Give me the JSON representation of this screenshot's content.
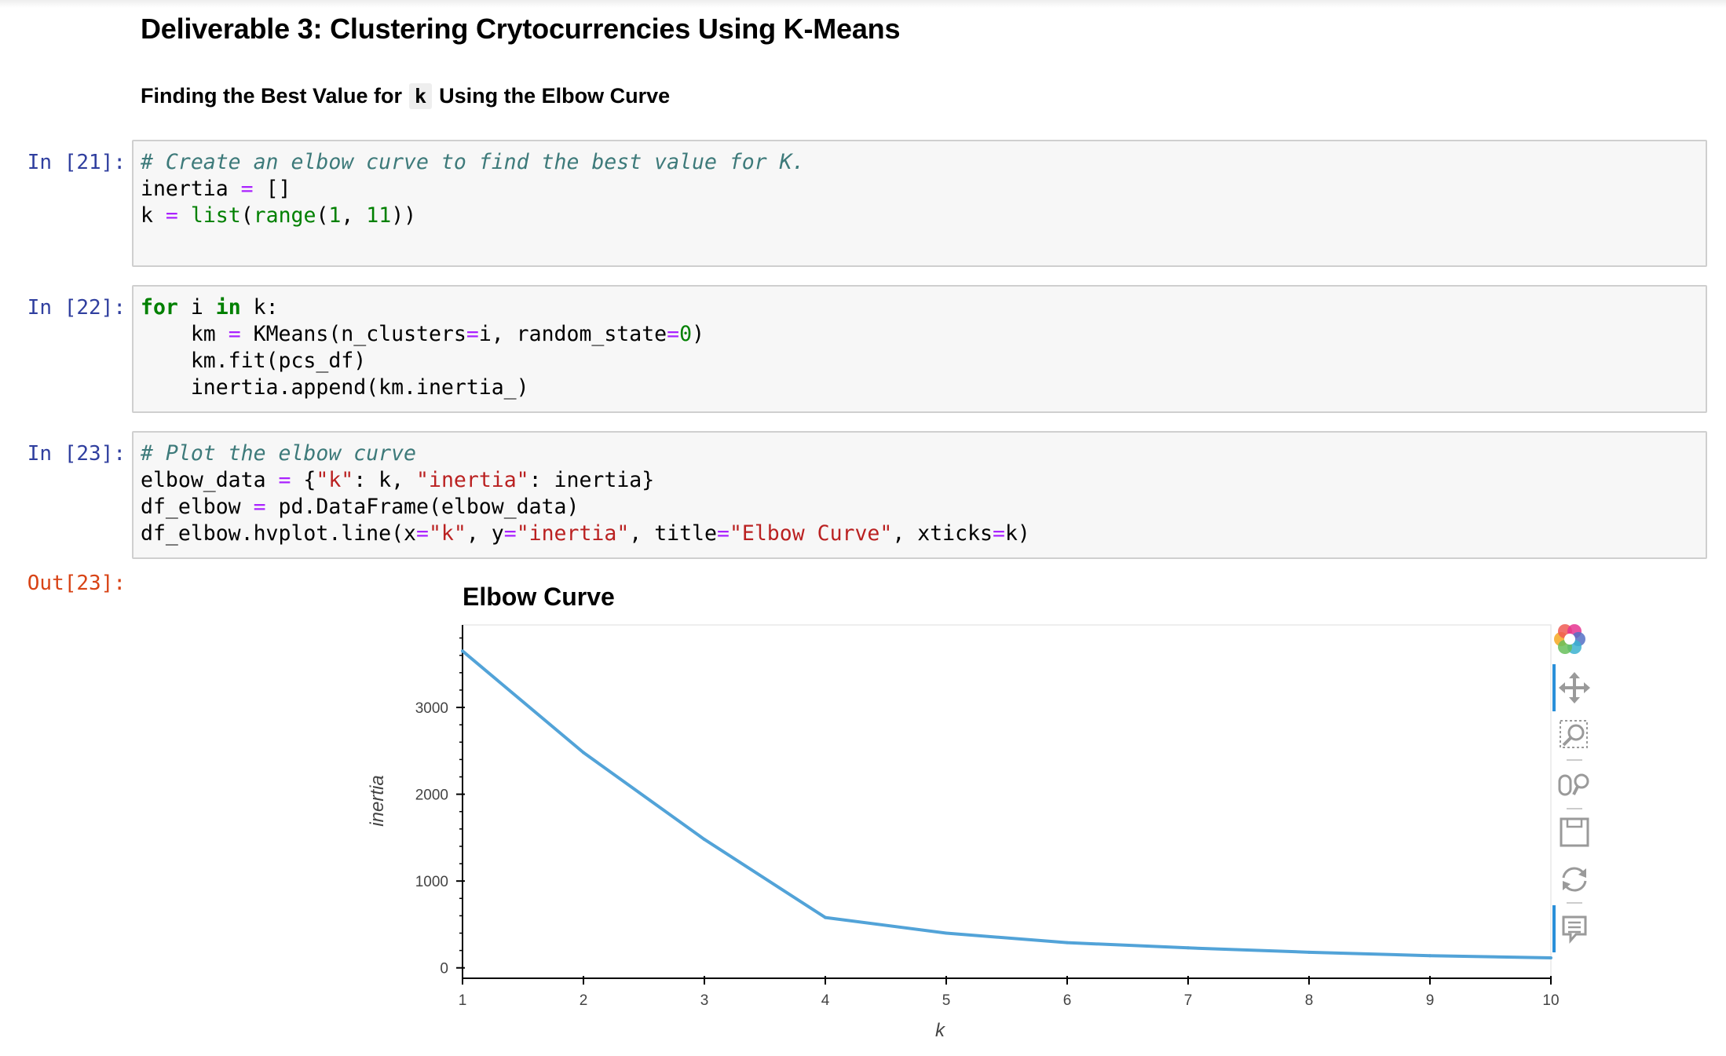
{
  "notebook": {
    "heading": "Deliverable 3: Clustering Crytocurrencies Using K-Means",
    "subheading": {
      "before": "Finding the Best Value for",
      "code": "k",
      "after": "Using the Elbow Curve"
    },
    "cells": [
      {
        "prompt": "In [21]:",
        "lines": [
          [
            {
              "t": "# Create an elbow curve to find the best value for K.",
              "c": "cm"
            }
          ],
          [
            {
              "t": "inertia "
            },
            {
              "t": "=",
              "c": "op"
            },
            {
              "t": " []"
            }
          ],
          [
            {
              "t": "k "
            },
            {
              "t": "=",
              "c": "op"
            },
            {
              "t": " "
            },
            {
              "t": "list",
              "c": "bi"
            },
            {
              "t": "("
            },
            {
              "t": "range",
              "c": "bi"
            },
            {
              "t": "("
            },
            {
              "t": "1",
              "c": "nu"
            },
            {
              "t": ", "
            },
            {
              "t": "11",
              "c": "nu"
            },
            {
              "t": "))"
            }
          ]
        ]
      },
      {
        "prompt": "In [22]:",
        "lines": [
          [
            {
              "t": "for",
              "c": "kw"
            },
            {
              "t": " i "
            },
            {
              "t": "in",
              "c": "kw"
            },
            {
              "t": " k:"
            }
          ],
          [
            {
              "t": "    km "
            },
            {
              "t": "=",
              "c": "op"
            },
            {
              "t": " KMeans(n_clusters"
            },
            {
              "t": "=",
              "c": "op"
            },
            {
              "t": "i, random_state"
            },
            {
              "t": "=",
              "c": "op"
            },
            {
              "t": "0",
              "c": "nu"
            },
            {
              "t": ")"
            }
          ],
          [
            {
              "t": "    km.fit(pcs_df)"
            }
          ],
          [
            {
              "t": "    inertia.append(km.inertia_)"
            }
          ]
        ]
      },
      {
        "prompt": "In [23]:",
        "lines": [
          [
            {
              "t": "# Plot the elbow curve",
              "c": "cm"
            }
          ],
          [
            {
              "t": "elbow_data "
            },
            {
              "t": "=",
              "c": "op"
            },
            {
              "t": " {"
            },
            {
              "t": "\"k\"",
              "c": "st"
            },
            {
              "t": ": k, "
            },
            {
              "t": "\"inertia\"",
              "c": "st"
            },
            {
              "t": ": inertia}"
            }
          ],
          [
            {
              "t": "df_elbow "
            },
            {
              "t": "=",
              "c": "op"
            },
            {
              "t": " pd.DataFrame(elbow_data)"
            }
          ],
          [
            {
              "t": "df_elbow.hvplot.line(x"
            },
            {
              "t": "=",
              "c": "op"
            },
            {
              "t": "\"k\"",
              "c": "st"
            },
            {
              "t": ", y"
            },
            {
              "t": "=",
              "c": "op"
            },
            {
              "t": "\"inertia\"",
              "c": "st"
            },
            {
              "t": ", title"
            },
            {
              "t": "=",
              "c": "op"
            },
            {
              "t": "\"Elbow Curve\"",
              "c": "st"
            },
            {
              "t": ", xticks"
            },
            {
              "t": "=",
              "c": "op"
            },
            {
              "t": "k)"
            }
          ]
        ]
      }
    ],
    "output_prompt": "Out[23]:"
  },
  "chart_data": {
    "type": "line",
    "title": "Elbow Curve",
    "xlabel": "k",
    "ylabel": "inertia",
    "x": [
      1,
      2,
      3,
      4,
      5,
      6,
      7,
      8,
      9,
      10
    ],
    "series": [
      {
        "values": [
          3650,
          2480,
          1480,
          580,
          400,
          290,
          230,
          180,
          140,
          115
        ],
        "color": "#52a3d8"
      }
    ],
    "xticks": [
      1,
      2,
      3,
      4,
      5,
      6,
      7,
      8,
      9,
      10
    ],
    "yticks": [
      0,
      1000,
      2000,
      3000
    ],
    "xlim": [
      1,
      10
    ],
    "ylim": [
      -120,
      3950
    ],
    "grid": false
  },
  "toolbar": {
    "tools": [
      "bokeh-logo",
      "pan-tool",
      "box-zoom-tool",
      "wheel-zoom-tool",
      "save-tool",
      "reset-tool",
      "hover-tool"
    ]
  }
}
